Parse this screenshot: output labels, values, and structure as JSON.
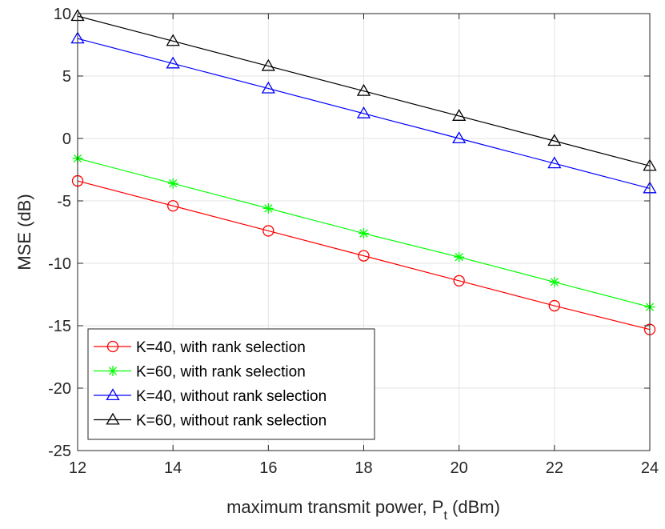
{
  "chart_data": {
    "type": "line",
    "title": "",
    "xlabel": "maximum transmit power, P",
    "xlabel_subscript": "t",
    "xlabel_unit": " (dBm)",
    "ylabel": "MSE (dB)",
    "xlim": [
      12,
      24
    ],
    "ylim": [
      -25,
      10
    ],
    "xticks": [
      12,
      14,
      16,
      18,
      20,
      22,
      24
    ],
    "yticks": [
      -25,
      -20,
      -15,
      -10,
      -5,
      0,
      5,
      10
    ],
    "grid": true,
    "legend_position": "bottom-left",
    "x": [
      12,
      14,
      16,
      18,
      20,
      22,
      24
    ],
    "series": [
      {
        "name": "K=40, with rank selection",
        "color": "#ff0000",
        "marker": "circle",
        "values": [
          -3.4,
          -5.4,
          -7.4,
          -9.4,
          -11.4,
          -13.4,
          -15.3
        ]
      },
      {
        "name": "K=60, with rank selection",
        "color": "#00ff00",
        "marker": "asterisk",
        "values": [
          -1.6,
          -3.6,
          -5.6,
          -7.6,
          -9.5,
          -11.5,
          -13.5
        ]
      },
      {
        "name": "K=40, without rank selection",
        "color": "#0000ff",
        "marker": "triangle",
        "values": [
          8.0,
          6.0,
          4.0,
          2.0,
          0.0,
          -2.0,
          -4.0
        ]
      },
      {
        "name": "K=60, without rank selection",
        "color": "#000000",
        "marker": "triangle",
        "values": [
          9.8,
          7.8,
          5.8,
          3.8,
          1.8,
          -0.2,
          -2.2
        ]
      }
    ]
  }
}
